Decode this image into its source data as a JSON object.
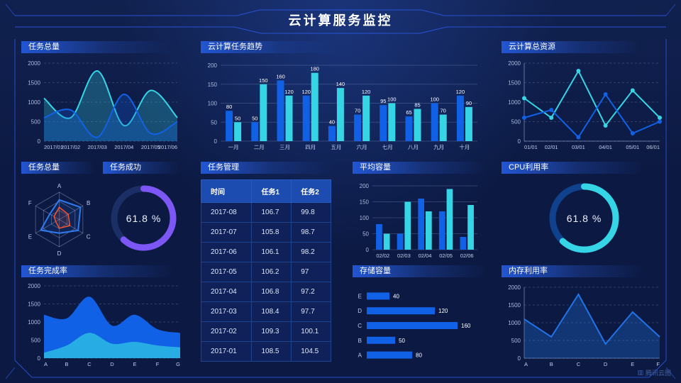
{
  "header": {
    "title": "云计算服务监控"
  },
  "watermark": {
    "label": "腾讯云图"
  },
  "colors": {
    "blue": "#1161e6",
    "cyan": "#35d5e5",
    "purple": "#7d57f5",
    "red": "#f4562c",
    "skyblue": "#27ade4",
    "track_dark": "#1b2f66",
    "track_blue": "#10418c",
    "axis_text": "#a9badf",
    "cat_text": "#c2cfee"
  },
  "chart_data": [
    {
      "id": "tasks-total-area",
      "type": "area",
      "title": "任务总量",
      "x": [
        "2017/01",
        "2017/02",
        "2017/03",
        "2017/04",
        "2017/05",
        "2017/06"
      ],
      "series": [
        {
          "name": "series-cyan",
          "color": "cyan",
          "values": [
            1100,
            600,
            1800,
            400,
            1300,
            600
          ]
        },
        {
          "name": "series-blue",
          "color": "blue",
          "values": [
            600,
            800,
            100,
            1200,
            200,
            500
          ]
        }
      ],
      "ylim": [
        0,
        2000
      ],
      "yticks": [
        0,
        500,
        1000,
        1500,
        2000
      ],
      "smooth": true,
      "grid": "dashed",
      "legend": "none"
    },
    {
      "id": "cloud-task-trend",
      "type": "bar",
      "title": "云计算任务趋势",
      "categories": [
        "一月",
        "二月",
        "三月",
        "四月",
        "五月",
        "六月",
        "七月",
        "八月",
        "九月",
        "十月"
      ],
      "series": [
        {
          "name": "任务1",
          "color": "blue",
          "values": [
            80,
            50,
            160,
            120,
            40,
            70,
            95,
            65,
            100,
            120
          ]
        },
        {
          "name": "任务2",
          "color": "cyan",
          "values": [
            50,
            150,
            120,
            180,
            140,
            120,
            100,
            85,
            70,
            90
          ]
        }
      ],
      "ylim": [
        0,
        200
      ],
      "yticks": [
        0,
        50,
        100,
        150,
        200
      ],
      "data_labels": true,
      "grid": "solid",
      "legend": "none"
    },
    {
      "id": "cloud-total-resources",
      "type": "line",
      "title": "云计算总资源",
      "x": [
        "01/01",
        "02/01",
        "03/01",
        "04/01",
        "05/01",
        "06/01"
      ],
      "series": [
        {
          "name": "series-cyan",
          "color": "cyan",
          "values": [
            1100,
            600,
            1800,
            400,
            1300,
            600
          ]
        },
        {
          "name": "series-blue",
          "color": "blue",
          "values": [
            600,
            800,
            100,
            1200,
            200,
            500
          ]
        }
      ],
      "ylim": [
        0,
        2000
      ],
      "yticks": [
        0,
        500,
        1000,
        1500,
        2000
      ],
      "markers": true,
      "axis": true,
      "grid": "dashed",
      "legend": "none"
    },
    {
      "id": "tasks-radar",
      "type": "radar",
      "title": "任务总量",
      "axes": [
        "A",
        "B",
        "C",
        "D",
        "E",
        "F"
      ],
      "max": 100,
      "series": [
        {
          "name": "outer-blue",
          "color": "#2f7bf0",
          "values": [
            72,
            90,
            80,
            50,
            78,
            40
          ]
        },
        {
          "name": "inner-red",
          "color": "red",
          "values": [
            45,
            38,
            45,
            32,
            15,
            22
          ]
        }
      ]
    },
    {
      "id": "task-success-gauge",
      "type": "donut",
      "title": "任务成功",
      "value": 61.8,
      "label": "61.8 %",
      "color": "purple",
      "track": "track_dark"
    },
    {
      "id": "task-table",
      "type": "table",
      "title": "任务管理",
      "columns": [
        "时间",
        "任务1",
        "任务2"
      ],
      "rows": [
        [
          "2017-08",
          "106.7",
          "99.8"
        ],
        [
          "2017-07",
          "105.8",
          "98.7"
        ],
        [
          "2017-06",
          "106.1",
          "98.2"
        ],
        [
          "2017-05",
          "106.2",
          "97"
        ],
        [
          "2017-04",
          "106.8",
          "97.2"
        ],
        [
          "2017-03",
          "108.4",
          "97.7"
        ],
        [
          "2017-02",
          "109.3",
          "100.1"
        ],
        [
          "2017-01",
          "108.5",
          "104.5"
        ]
      ]
    },
    {
      "id": "avg-capacity",
      "type": "bar",
      "title": "平均容量",
      "categories": [
        "02/02",
        "02/03",
        "02/04",
        "02/05",
        "02/06"
      ],
      "series": [
        {
          "name": "series-blue",
          "color": "blue",
          "values": [
            80,
            50,
            160,
            120,
            40
          ]
        },
        {
          "name": "series-cyan",
          "color": "cyan",
          "values": [
            50,
            150,
            120,
            190,
            140
          ]
        }
      ],
      "ylim": [
        0,
        200
      ],
      "yticks": [
        0,
        50,
        100,
        150,
        200
      ],
      "data_labels": false,
      "grid": "solid",
      "legend": "none"
    },
    {
      "id": "cpu-gauge",
      "type": "donut",
      "title": "CPU利用率",
      "value": 61.8,
      "label": "61.8 %",
      "color": "cyan",
      "track": "track_blue"
    },
    {
      "id": "task-completion",
      "type": "stacked-area",
      "title": "任务完成率",
      "x": [
        "A",
        "B",
        "C",
        "D",
        "E",
        "F",
        "G"
      ],
      "series": [
        {
          "name": "lower-layer",
          "color": "skyblue",
          "values": [
            150,
            350,
            700,
            400,
            450,
            350,
            300
          ]
        },
        {
          "name": "upper-layer-total",
          "color": "blue",
          "values": [
            1200,
            1100,
            1700,
            900,
            1200,
            800,
            700
          ]
        }
      ],
      "ylim": [
        0,
        2000
      ],
      "yticks": [
        0,
        500,
        1000,
        1500,
        2000
      ],
      "smooth": true,
      "grid": "dashed"
    },
    {
      "id": "storage-capacity",
      "type": "hbar",
      "title": "存储容量",
      "categories": [
        "E",
        "D",
        "C",
        "B",
        "A"
      ],
      "values": [
        40,
        120,
        160,
        50,
        80
      ],
      "xmax": 170,
      "color": "blue",
      "data_labels": true
    },
    {
      "id": "memory-usage",
      "type": "line-area",
      "title": "内存利用率",
      "x": [
        "A",
        "B",
        "C",
        "D",
        "E",
        "F"
      ],
      "series": [
        {
          "name": "series-blue",
          "color": "#2173e8",
          "values": [
            1100,
            600,
            1800,
            400,
            1300,
            600
          ]
        }
      ],
      "ylim": [
        0,
        2000
      ],
      "yticks": [
        0,
        500,
        1000,
        1500,
        2000
      ],
      "axis": true,
      "grid": "dashed"
    }
  ]
}
